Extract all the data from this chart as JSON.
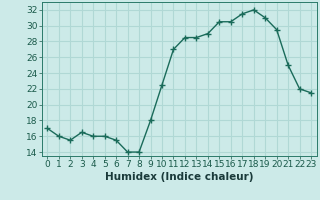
{
  "x": [
    0,
    1,
    2,
    3,
    4,
    5,
    6,
    7,
    8,
    9,
    10,
    11,
    12,
    13,
    14,
    15,
    16,
    17,
    18,
    19,
    20,
    21,
    22,
    23
  ],
  "y": [
    17,
    16,
    15.5,
    16.5,
    16,
    16,
    15.5,
    14,
    14,
    18,
    22.5,
    27,
    28.5,
    28.5,
    29,
    30.5,
    30.5,
    31.5,
    32,
    31,
    29.5,
    25,
    22,
    21.5
  ],
  "line_color": "#1a6b5a",
  "marker": "+",
  "marker_size": 4,
  "bg_color": "#cceae8",
  "grid_color": "#b0d8d5",
  "xlabel": "Humidex (Indice chaleur)",
  "xlim": [
    -0.5,
    23.5
  ],
  "ylim": [
    13.5,
    33
  ],
  "yticks": [
    14,
    16,
    18,
    20,
    22,
    24,
    26,
    28,
    30,
    32
  ],
  "xticks": [
    0,
    1,
    2,
    3,
    4,
    5,
    6,
    7,
    8,
    9,
    10,
    11,
    12,
    13,
    14,
    15,
    16,
    17,
    18,
    19,
    20,
    21,
    22,
    23
  ],
  "xlabel_fontsize": 7.5,
  "tick_fontsize": 6.5
}
